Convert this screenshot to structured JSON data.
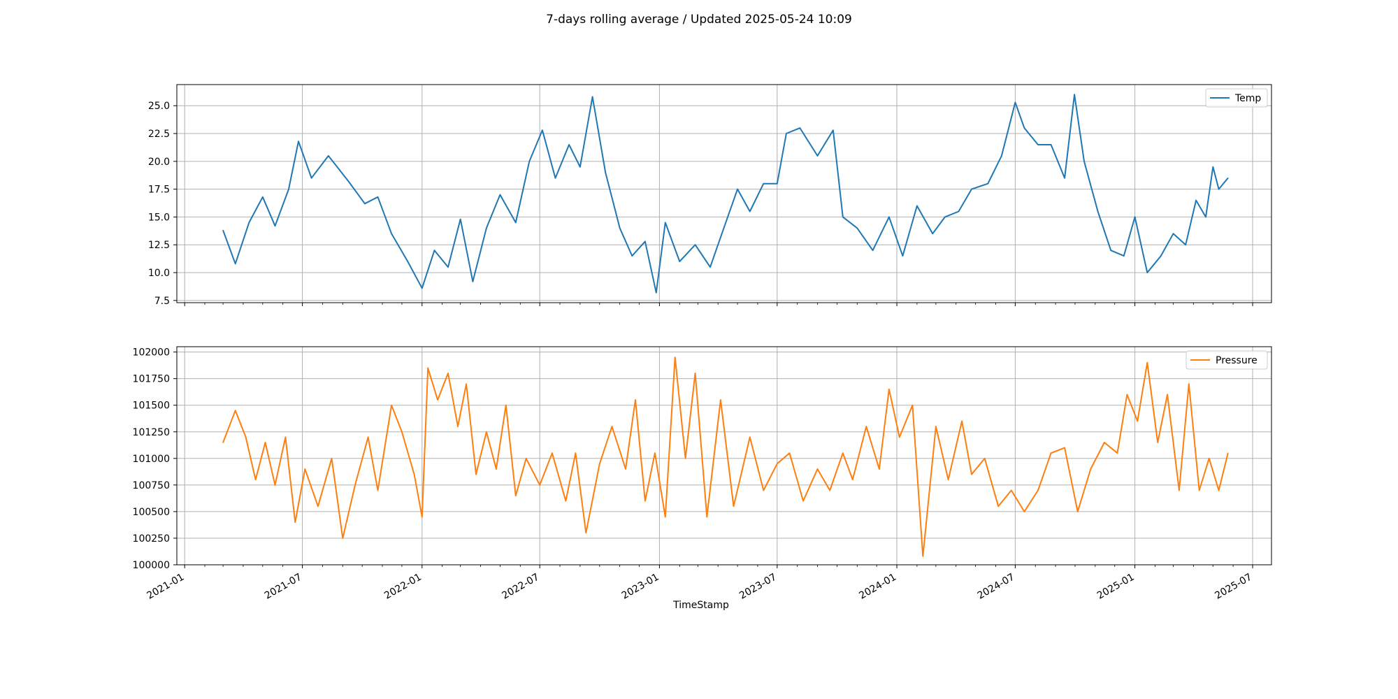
{
  "figure": {
    "title": "7-days rolling average / Updated 2025-05-24 10:09",
    "xlabel": "TimeStamp",
    "x_ticks": [
      "2021-01",
      "2021-07",
      "2022-01",
      "2022-07",
      "2023-01",
      "2023-07",
      "2024-01",
      "2024-07",
      "2025-01",
      "2025-07"
    ]
  },
  "colors": {
    "temp": "#1f77b4",
    "pressure": "#ff7f0e",
    "grid": "#b0b0b0"
  },
  "chart_data": [
    {
      "type": "line",
      "xlim": [
        "2020-12-20",
        "2025-07-30"
      ],
      "ylim": [
        7.3,
        26.9
      ],
      "y_ticks": [
        "7.5",
        "10.0",
        "12.5",
        "15.0",
        "17.5",
        "20.0",
        "22.5",
        "25.0"
      ],
      "grid": true,
      "legend": "top-right",
      "series": [
        {
          "name": "Temp",
          "x": [
            "2021-03-01",
            "2021-03-20",
            "2021-04-10",
            "2021-05-01",
            "2021-05-20",
            "2021-06-10",
            "2021-06-25",
            "2021-07-15",
            "2021-08-10",
            "2021-09-10",
            "2021-10-05",
            "2021-10-25",
            "2021-11-15",
            "2021-12-10",
            "2022-01-01",
            "2022-01-20",
            "2022-02-10",
            "2022-03-01",
            "2022-03-20",
            "2022-04-10",
            "2022-05-01",
            "2022-05-25",
            "2022-06-15",
            "2022-07-05",
            "2022-07-25",
            "2022-08-15",
            "2022-09-01",
            "2022-09-20",
            "2022-10-10",
            "2022-11-01",
            "2022-11-20",
            "2022-12-10",
            "2022-12-27",
            "2023-01-10",
            "2023-02-01",
            "2023-02-25",
            "2023-03-20",
            "2023-04-10",
            "2023-05-01",
            "2023-05-20",
            "2023-06-10",
            "2023-07-01",
            "2023-07-15",
            "2023-08-05",
            "2023-09-01",
            "2023-09-25",
            "2023-10-10",
            "2023-11-01",
            "2023-11-25",
            "2023-12-20",
            "2024-01-10",
            "2024-02-01",
            "2024-02-25",
            "2024-03-15",
            "2024-04-05",
            "2024-04-25",
            "2024-05-20",
            "2024-06-10",
            "2024-07-01",
            "2024-07-15",
            "2024-08-05",
            "2024-08-25",
            "2024-09-15",
            "2024-09-30",
            "2024-10-15",
            "2024-11-05",
            "2024-11-25",
            "2024-12-15",
            "2025-01-01",
            "2025-01-20",
            "2025-02-10",
            "2025-03-01",
            "2025-03-20",
            "2025-04-05",
            "2025-04-20",
            "2025-05-01",
            "2025-05-10",
            "2025-05-24"
          ],
          "y": [
            13.8,
            10.8,
            14.5,
            16.8,
            14.2,
            17.5,
            21.8,
            18.5,
            20.5,
            18.2,
            16.2,
            16.8,
            13.5,
            11.0,
            8.6,
            12.0,
            10.5,
            14.8,
            9.2,
            14.0,
            17.0,
            14.5,
            20.0,
            22.8,
            18.5,
            21.5,
            19.5,
            25.8,
            19.0,
            14.0,
            11.5,
            12.8,
            8.2,
            14.5,
            11.0,
            12.5,
            10.5,
            14.0,
            17.5,
            15.5,
            18.0,
            18.0,
            22.5,
            23.0,
            20.5,
            22.8,
            15.0,
            14.0,
            12.0,
            15.0,
            11.5,
            16.0,
            13.5,
            15.0,
            15.5,
            17.5,
            18.0,
            20.5,
            25.3,
            23.0,
            21.5,
            21.5,
            18.5,
            26.0,
            20.0,
            15.5,
            12.0,
            11.5,
            15.0,
            10.0,
            11.5,
            13.5,
            12.5,
            16.5,
            15.0,
            19.5,
            17.5,
            18.5
          ]
        }
      ]
    },
    {
      "type": "line",
      "xlim": [
        "2020-12-20",
        "2025-07-30"
      ],
      "ylim": [
        100000,
        102050
      ],
      "y_ticks": [
        "100000",
        "100250",
        "100500",
        "100750",
        "101000",
        "101250",
        "101500",
        "101750",
        "102000"
      ],
      "grid": true,
      "legend": "top-right",
      "series": [
        {
          "name": "Pressure",
          "x": [
            "2021-03-01",
            "2021-03-20",
            "2021-04-05",
            "2021-04-20",
            "2021-05-05",
            "2021-05-20",
            "2021-06-05",
            "2021-06-20",
            "2021-07-05",
            "2021-07-25",
            "2021-08-15",
            "2021-09-01",
            "2021-09-20",
            "2021-10-10",
            "2021-10-25",
            "2021-11-15",
            "2021-12-01",
            "2021-12-20",
            "2022-01-01",
            "2022-01-10",
            "2022-01-25",
            "2022-02-10",
            "2022-02-25",
            "2022-03-10",
            "2022-03-25",
            "2022-04-10",
            "2022-04-25",
            "2022-05-10",
            "2022-05-25",
            "2022-06-10",
            "2022-07-01",
            "2022-07-20",
            "2022-08-10",
            "2022-08-25",
            "2022-09-10",
            "2022-10-01",
            "2022-10-20",
            "2022-11-10",
            "2022-11-25",
            "2022-12-10",
            "2022-12-25",
            "2023-01-10",
            "2023-01-25",
            "2023-02-10",
            "2023-02-25",
            "2023-03-15",
            "2023-04-05",
            "2023-04-25",
            "2023-05-20",
            "2023-06-10",
            "2023-07-01",
            "2023-07-20",
            "2023-08-10",
            "2023-09-01",
            "2023-09-20",
            "2023-10-10",
            "2023-10-25",
            "2023-11-15",
            "2023-12-05",
            "2023-12-20",
            "2024-01-05",
            "2024-01-25",
            "2024-02-10",
            "2024-03-01",
            "2024-03-20",
            "2024-04-10",
            "2024-04-25",
            "2024-05-15",
            "2024-06-05",
            "2024-06-25",
            "2024-07-15",
            "2024-08-05",
            "2024-08-25",
            "2024-09-15",
            "2024-10-05",
            "2024-10-25",
            "2024-11-15",
            "2024-12-05",
            "2024-12-20",
            "2025-01-05",
            "2025-01-20",
            "2025-02-05",
            "2025-02-20",
            "2025-03-10",
            "2025-03-25",
            "2025-04-10",
            "2025-04-25",
            "2025-05-10",
            "2025-05-24"
          ],
          "y": [
            101150,
            101450,
            101200,
            100800,
            101150,
            100750,
            101200,
            100400,
            100900,
            100550,
            101000,
            100250,
            100750,
            101200,
            100700,
            101500,
            101250,
            100850,
            100450,
            101850,
            101550,
            101800,
            101300,
            101700,
            100850,
            101250,
            100900,
            101500,
            100650,
            101000,
            100750,
            101050,
            100600,
            101050,
            100300,
            100950,
            101300,
            100900,
            101550,
            100600,
            101050,
            100450,
            101950,
            101000,
            101800,
            100450,
            101550,
            100550,
            101200,
            100700,
            100950,
            101050,
            100600,
            100900,
            100700,
            101050,
            100800,
            101300,
            100900,
            101650,
            101200,
            101500,
            100080,
            101300,
            100800,
            101350,
            100850,
            101000,
            100550,
            100700,
            100500,
            100700,
            101050,
            101100,
            100500,
            100900,
            101150,
            101050,
            101600,
            101350,
            101900,
            101150,
            101600,
            100700,
            101700,
            100700,
            101000,
            100700,
            101050
          ]
        }
      ]
    }
  ]
}
